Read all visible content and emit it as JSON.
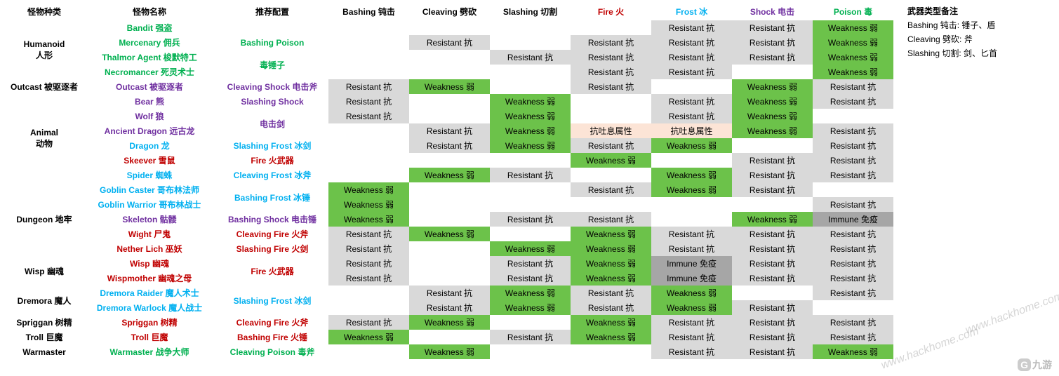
{
  "headers": {
    "type": "怪物种类",
    "name": "怪物名称",
    "rec": "推荐配置",
    "bashing": "Bashing 钝击",
    "cleaving": "Cleaving 劈砍",
    "slashing": "Slashing 切割",
    "fire": "Fire 火",
    "frost": "Frost 冰",
    "shock": "Shock 电击",
    "poison": "Poison 毒",
    "notes": "武器类型备注"
  },
  "cellText": {
    "w": "Weakness 弱",
    "r": "Resistant 抗",
    "i": "Immune 免疫",
    "b": "抗吐息属性",
    "e": ""
  },
  "colors": {
    "weakness_bg": "#6cc24a",
    "resist_bg": "#d9d9d9",
    "immune_bg": "#a6a6a6",
    "breath_bg": "#fce4d6",
    "green": "#00b050",
    "purple": "#7030a0",
    "cyan": "#00b0f0",
    "red": "#c00000",
    "black": "#000000"
  },
  "groups": [
    {
      "type": "Humanoid\n人形",
      "rows": [
        {
          "name": "Bandit 强盗",
          "nc": "green",
          "rec": "",
          "rc": "green",
          "d": [
            "e",
            "e",
            "e",
            "e",
            "r",
            "r",
            "w"
          ]
        },
        {
          "name": "Mercenary 佣兵",
          "nc": "green",
          "rec": "Bashing Poison",
          "rc": "green",
          "d": [
            "e",
            "r",
            "e",
            "r",
            "r",
            "r",
            "w"
          ]
        },
        {
          "name": "Thalmor Agent 梭默特工",
          "nc": "green",
          "rec": "毒锤子",
          "rc": "green",
          "d": [
            "e",
            "e",
            "r",
            "r",
            "r",
            "r",
            "w"
          ]
        },
        {
          "name": "Necromancer 死灵术士",
          "nc": "green",
          "rec": "",
          "rc": "green",
          "d": [
            "e",
            "e",
            "e",
            "r",
            "r",
            "e",
            "w"
          ]
        }
      ]
    },
    {
      "type": "Outcast 被驱逐者",
      "rows": [
        {
          "name": "Outcast 被驱逐者",
          "nc": "purple",
          "rec": "Cleaving Shock 电击斧",
          "rc": "purple",
          "d": [
            "r",
            "w",
            "e",
            "r",
            "e",
            "w",
            "r"
          ]
        }
      ]
    },
    {
      "type": "Animal\n动物",
      "rows": [
        {
          "name": "Bear 熊",
          "nc": "purple",
          "rec": "Slashing Shock",
          "rc": "purple",
          "d": [
            "r",
            "e",
            "w",
            "e",
            "r",
            "w",
            "r"
          ]
        },
        {
          "name": "Wolf 狼",
          "nc": "purple",
          "rec": "电击剑",
          "rc": "purple",
          "d": [
            "r",
            "e",
            "w",
            "e",
            "r",
            "w",
            "e"
          ]
        },
        {
          "name": "Ancient Dragon 远古龙",
          "nc": "purple",
          "rec": "",
          "rc": "purple",
          "d": [
            "e",
            "r",
            "w",
            "b",
            "b",
            "w",
            "r"
          ]
        },
        {
          "name": "Dragon 龙",
          "nc": "cyan",
          "rec": "Slashing Frost 冰剑",
          "rc": "cyan",
          "d": [
            "e",
            "r",
            "w",
            "r",
            "w",
            "e",
            "r"
          ]
        },
        {
          "name": "Skeever 雪鼠",
          "nc": "red",
          "rec": "Fire 火武器",
          "rc": "red",
          "d": [
            "e",
            "e",
            "e",
            "w",
            "e",
            "r",
            "r"
          ]
        },
        {
          "name": "Spider 蜘蛛",
          "nc": "cyan",
          "rec": "Cleaving Frost 冰斧",
          "rc": "cyan",
          "d": [
            "e",
            "w",
            "r",
            "e",
            "w",
            "r",
            "r"
          ]
        }
      ]
    },
    {
      "type": "Dungeon 地牢",
      "rows": [
        {
          "name": "Goblin Caster 哥布林法师",
          "nc": "cyan",
          "rec": "Bashing Frost 冰锤",
          "rc": "cyan",
          "d": [
            "w",
            "e",
            "e",
            "r",
            "w",
            "r",
            "e"
          ]
        },
        {
          "name": "Goblin Warrior 哥布林战士",
          "nc": "cyan",
          "rec": "",
          "rc": "cyan",
          "d": [
            "w",
            "e",
            "e",
            "e",
            "e",
            "e",
            "r"
          ]
        },
        {
          "name": "Skeleton 骷髅",
          "nc": "purple",
          "rec": "Bashing Shock 电击锤",
          "rc": "purple",
          "d": [
            "w",
            "e",
            "r",
            "r",
            "e",
            "w",
            "i"
          ]
        },
        {
          "name": "Wight 尸鬼",
          "nc": "red",
          "rec": "Cleaving Fire 火斧",
          "rc": "red",
          "d": [
            "r",
            "w",
            "e",
            "w",
            "r",
            "r",
            "r"
          ]
        },
        {
          "name": "Nether Lich 巫妖",
          "nc": "red",
          "rec": "Slashing Fire 火剑",
          "rc": "red",
          "d": [
            "r",
            "e",
            "w",
            "w",
            "r",
            "r",
            "r"
          ]
        }
      ]
    },
    {
      "type": "Wisp 幽魂",
      "rows": [
        {
          "name": "Wisp 幽魂",
          "nc": "red",
          "rec": "Fire 火武器",
          "rc": "red",
          "d": [
            "r",
            "e",
            "r",
            "w",
            "i",
            "r",
            "r"
          ]
        },
        {
          "name": "Wispmother 幽魂之母",
          "nc": "red",
          "rec": "",
          "rc": "red",
          "d": [
            "r",
            "e",
            "r",
            "w",
            "i",
            "r",
            "r"
          ]
        }
      ]
    },
    {
      "type": "Dremora 魔人",
      "rows": [
        {
          "name": "Dremora Raider 魔人术士",
          "nc": "cyan",
          "rec": "Slashing Frost 冰剑",
          "rc": "cyan",
          "d": [
            "e",
            "r",
            "w",
            "r",
            "w",
            "e",
            "r"
          ]
        },
        {
          "name": "Dremora Warlock 魔人战士",
          "nc": "cyan",
          "rec": "",
          "rc": "cyan",
          "d": [
            "e",
            "r",
            "w",
            "r",
            "w",
            "r",
            "e"
          ]
        }
      ]
    },
    {
      "type": "Spriggan 树精",
      "rows": [
        {
          "name": "Spriggan 树精",
          "nc": "red",
          "rec": "Cleaving Fire 火斧",
          "rc": "red",
          "d": [
            "r",
            "w",
            "e",
            "w",
            "r",
            "r",
            "r"
          ]
        }
      ]
    },
    {
      "type": "Troll 巨魔",
      "rows": [
        {
          "name": "Troll 巨魔",
          "nc": "red",
          "rec": "Bashing Fire 火锤",
          "rc": "red",
          "d": [
            "w",
            "e",
            "r",
            "w",
            "r",
            "r",
            "r"
          ]
        }
      ]
    },
    {
      "type": "Warmaster",
      "rows": [
        {
          "name": "Warmaster 战争大师",
          "nc": "green",
          "rec": "Cleaving Poison 毒斧",
          "rc": "green",
          "d": [
            "e",
            "w",
            "e",
            "e",
            "r",
            "r",
            "w"
          ]
        }
      ]
    }
  ],
  "notes": [
    "Bashing 钝击: 锤子、盾",
    "Cleaving 劈砍: 斧",
    "Slashing 切割: 剑、匕首"
  ],
  "watermarks": {
    "w1": "www.hackhome.com",
    "w2": "www.hackhome.com",
    "logo": "九游"
  }
}
